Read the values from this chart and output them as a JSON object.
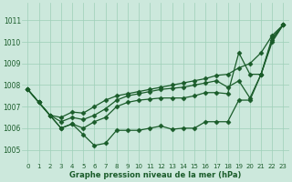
{
  "title": "Graphe pression niveau de la mer (hPa)",
  "background_color": "#cce8dc",
  "grid_color": "#9ecfb8",
  "line_color": "#1a5c2a",
  "xlim": [
    -0.5,
    23.5
  ],
  "ylim": [
    1004.4,
    1011.8
  ],
  "yticks": [
    1005,
    1006,
    1007,
    1008,
    1009,
    1010,
    1011
  ],
  "xticks": [
    0,
    1,
    2,
    3,
    4,
    5,
    6,
    7,
    8,
    9,
    10,
    11,
    12,
    13,
    14,
    15,
    16,
    17,
    18,
    19,
    20,
    21,
    22,
    23
  ],
  "series": [
    {
      "data": [
        1007.8,
        1007.2,
        1006.6,
        1006.0,
        1006.2,
        1005.7,
        1005.2,
        1005.3,
        1005.9,
        1005.9,
        1005.9,
        1006.0,
        1006.1,
        1005.95,
        1006.0,
        1006.0,
        1006.3,
        1006.3,
        1006.3,
        1007.3,
        1007.3,
        1008.5,
        1010.0,
        1010.8
      ],
      "marker": "D",
      "markersize": 2.5,
      "linewidth": 0.9
    },
    {
      "data": [
        1007.8,
        1007.2,
        1006.6,
        1006.5,
        1006.75,
        1006.7,
        1007.0,
        1007.3,
        1007.5,
        1007.6,
        1007.7,
        1007.8,
        1007.9,
        1008.0,
        1008.1,
        1008.2,
        1008.3,
        1008.45,
        1008.5,
        1008.8,
        1009.0,
        1009.5,
        1010.3,
        1010.8
      ],
      "marker": "D",
      "markersize": 2.5,
      "linewidth": 0.9
    },
    {
      "data": [
        1007.8,
        1007.2,
        1006.6,
        1006.3,
        1006.5,
        1006.4,
        1006.6,
        1006.9,
        1007.3,
        1007.5,
        1007.6,
        1007.7,
        1007.8,
        1007.85,
        1007.9,
        1008.0,
        1008.1,
        1008.2,
        1007.9,
        1008.2,
        1007.4,
        1008.5,
        1010.2,
        1010.8
      ],
      "marker": "D",
      "markersize": 2.5,
      "linewidth": 0.9
    },
    {
      "data": [
        1007.8,
        1007.2,
        1006.6,
        1006.0,
        1006.2,
        1006.0,
        1006.3,
        1006.5,
        1007.0,
        1007.2,
        1007.3,
        1007.35,
        1007.4,
        1007.4,
        1007.4,
        1007.5,
        1007.65,
        1007.65,
        1007.6,
        1009.5,
        1008.5,
        1008.5,
        1010.1,
        1010.8
      ],
      "marker": "D",
      "markersize": 2.5,
      "linewidth": 0.9
    }
  ]
}
